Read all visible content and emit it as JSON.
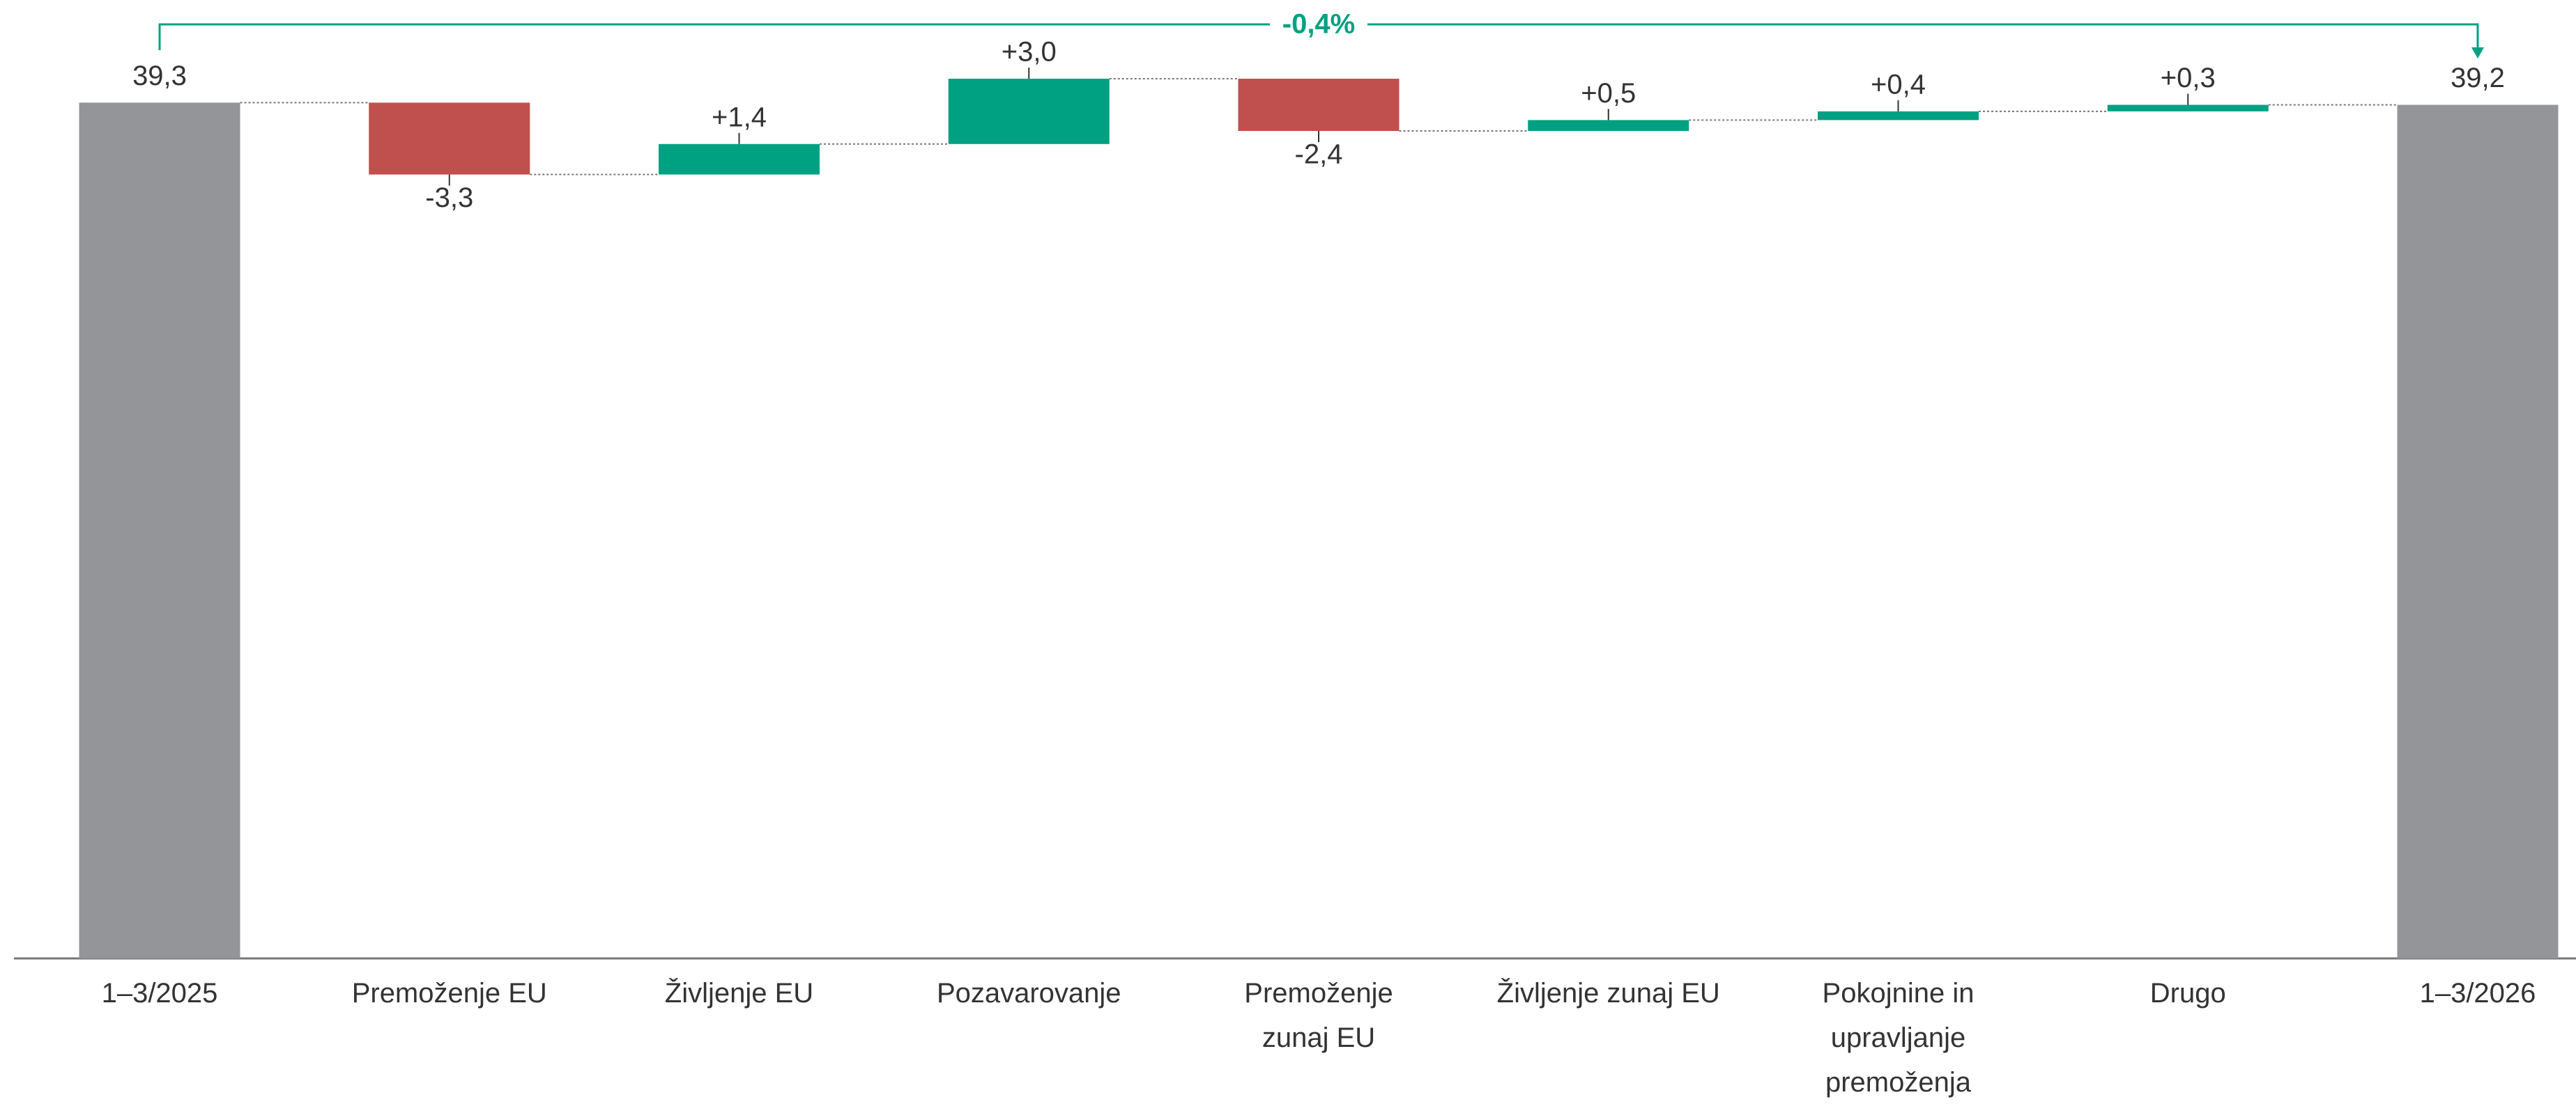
{
  "chart_data": {
    "type": "waterfall",
    "categories": [
      "1–3/2025",
      "Premoženje EU",
      "Življenje EU",
      "Pozavarovanje",
      "Premoženje\nzunaj EU",
      "Življenje zunaj EU",
      "Pokojnine in\nupravljanje\npremoženja",
      "Drugo",
      "1–3/2026"
    ],
    "values": [
      39.3,
      -3.3,
      1.4,
      3.0,
      -2.4,
      0.5,
      0.4,
      0.3,
      39.2
    ],
    "value_labels": [
      "39,3",
      "-3,3",
      "+1,4",
      "+3,0",
      "-2,4",
      "+0,5",
      "+0,4",
      "+0,3",
      "39,2"
    ],
    "total_color": "#939598",
    "increase_color": "#00a183",
    "decrease_color": "#c0504d",
    "annotation": "-0,4%",
    "annotation_color": "#00a183"
  }
}
